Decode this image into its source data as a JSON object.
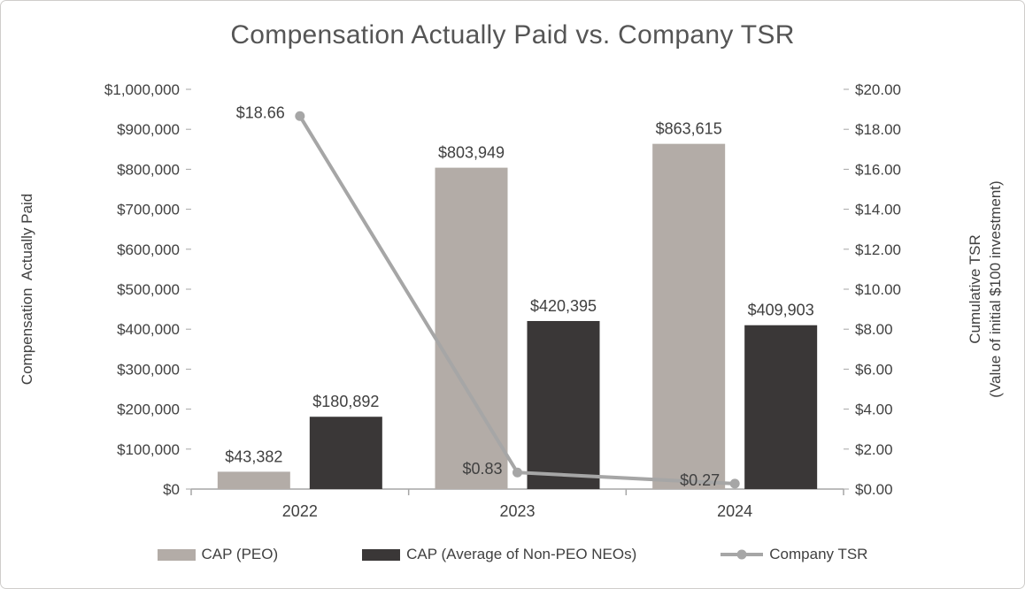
{
  "chart_data": {
    "type": "combo",
    "title": "Compensation Actually Paid vs. Company TSR",
    "categories": [
      "2022",
      "2023",
      "2024"
    ],
    "series": [
      {
        "name": "CAP (PEO)",
        "chart_type": "bar",
        "axis": "left",
        "color": "#b3aca7",
        "values": [
          43382,
          803949,
          863615
        ],
        "data_labels": [
          "$43,382",
          "$803,949",
          "$863,615"
        ]
      },
      {
        "name": "CAP (Average of Non-PEO NEOs)",
        "chart_type": "bar",
        "axis": "left",
        "color": "#3a3737",
        "values": [
          180892,
          420395,
          409903
        ],
        "data_labels": [
          "$180,892",
          "$420,395",
          "$409,903"
        ]
      },
      {
        "name": "Company TSR",
        "chart_type": "line",
        "axis": "right",
        "color": "#a6a6a6",
        "values": [
          18.66,
          0.83,
          0.27
        ],
        "data_labels": [
          "$18.66",
          "$0.83",
          "$0.27"
        ]
      }
    ],
    "left_axis": {
      "title": "Compensation  Actually Paid",
      "min": 0,
      "max": 1000000,
      "step": 100000,
      "ticks": [
        "$0",
        "$100,000",
        "$200,000",
        "$300,000",
        "$400,000",
        "$500,000",
        "$600,000",
        "$700,000",
        "$800,000",
        "$900,000",
        "$1,000,000"
      ]
    },
    "right_axis": {
      "title_line1": "Cumulative TSR",
      "title_line2": "(Value of initial $100 investment)",
      "min": 0,
      "max": 20,
      "step": 2,
      "ticks": [
        "$0.00",
        "$2.00",
        "$4.00",
        "$6.00",
        "$8.00",
        "$10.00",
        "$12.00",
        "$14.00",
        "$16.00",
        "$18.00",
        "$20.00"
      ]
    },
    "legend_position": "bottom",
    "grid": false
  },
  "colors": {
    "text": "#404040",
    "axis_line": "#a6a6a6",
    "border": "#cfcdcb",
    "background": "#ffffff"
  }
}
